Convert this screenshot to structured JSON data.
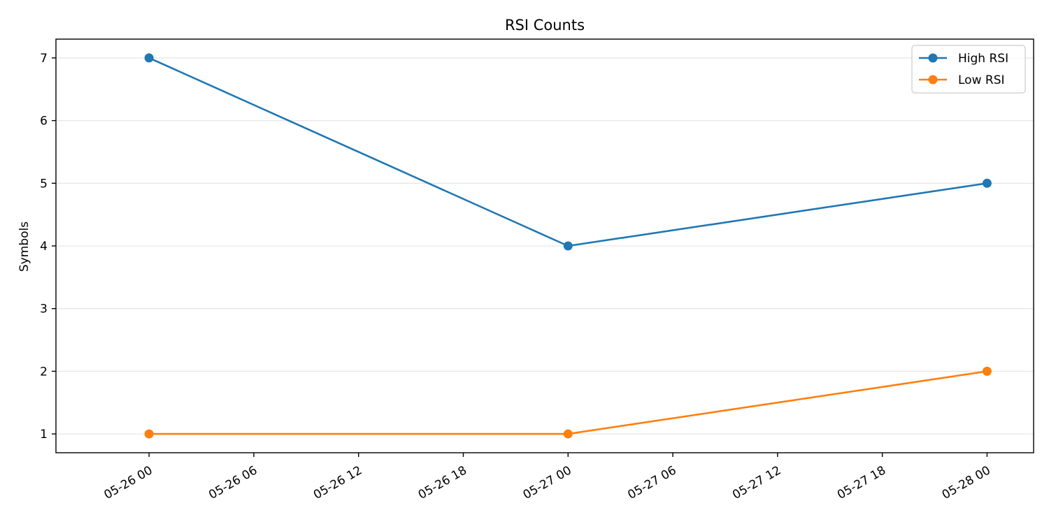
{
  "chart_data": {
    "type": "line",
    "title": "RSI Counts",
    "xlabel": "",
    "ylabel": "Symbols",
    "x": [
      "2025-05-26 00:00",
      "2025-05-27 00:00",
      "2025-05-28 00:00"
    ],
    "xlim": [
      "2025-05-25 18:40",
      "2025-05-28 02:40"
    ],
    "xticks": [
      {
        "value": "2025-05-26 00:00",
        "label": "05-26 00"
      },
      {
        "value": "2025-05-26 06:00",
        "label": "05-26 06"
      },
      {
        "value": "2025-05-26 12:00",
        "label": "05-26 12"
      },
      {
        "value": "2025-05-26 18:00",
        "label": "05-26 18"
      },
      {
        "value": "2025-05-27 00:00",
        "label": "05-27 00"
      },
      {
        "value": "2025-05-27 06:00",
        "label": "05-27 06"
      },
      {
        "value": "2025-05-27 12:00",
        "label": "05-27 12"
      },
      {
        "value": "2025-05-27 18:00",
        "label": "05-27 18"
      },
      {
        "value": "2025-05-28 00:00",
        "label": "05-28 00"
      }
    ],
    "ylim": [
      0.7,
      7.3
    ],
    "yticks": [
      1,
      2,
      3,
      4,
      5,
      6,
      7
    ],
    "grid": "y",
    "legend": "top-right",
    "series": [
      {
        "name": "High RSI",
        "color": "#1f77b4",
        "marker": "circle",
        "values": [
          7,
          4,
          5
        ]
      },
      {
        "name": "Low RSI",
        "color": "#ff7f0e",
        "marker": "circle",
        "values": [
          1,
          1,
          2
        ]
      }
    ]
  }
}
